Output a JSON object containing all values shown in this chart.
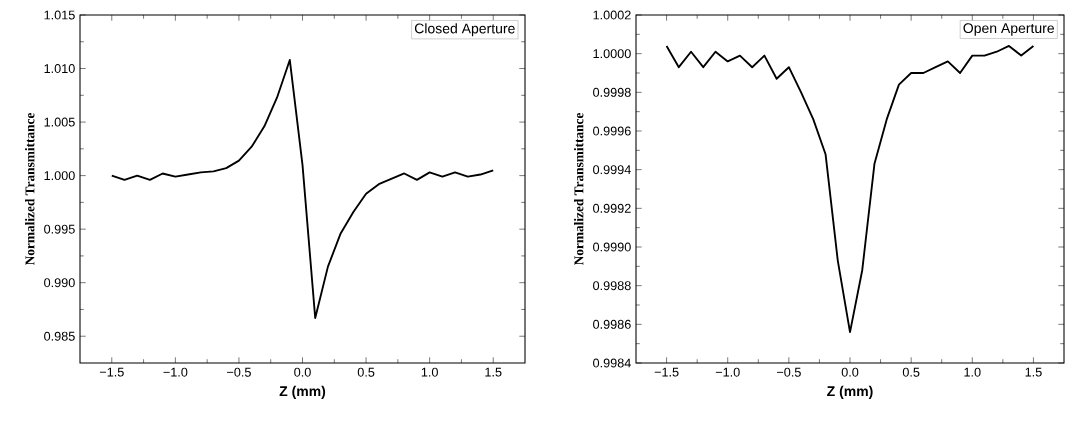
{
  "chart_data": [
    {
      "type": "line",
      "xlabel": "Z (mm)",
      "ylabel": "Normalized Transmittance",
      "annotations": [
        "Closed Aperture"
      ],
      "x": [
        -1.5,
        -1.4,
        -1.3,
        -1.2,
        -1.1,
        -1.0,
        -0.9,
        -0.8,
        -0.7,
        -0.6,
        -0.5,
        -0.4,
        -0.3,
        -0.2,
        -0.1,
        0.0,
        0.1,
        0.2,
        0.3,
        0.4,
        0.5,
        0.6,
        0.7,
        0.8,
        0.9,
        1.0,
        1.1,
        1.2,
        1.3,
        1.4,
        1.5
      ],
      "series": [
        {
          "color": "#000000",
          "values": [
            1.0,
            0.9996,
            1.0,
            0.9996,
            1.0002,
            0.9999,
            1.0001,
            1.0003,
            1.0004,
            1.0007,
            1.0014,
            1.0027,
            1.0046,
            1.0073,
            1.0108,
            1.001,
            0.9867,
            0.9915,
            0.9946,
            0.9966,
            0.9983,
            0.9992,
            0.9997,
            1.0002,
            0.9996,
            1.0003,
            0.9999,
            1.0003,
            0.9999,
            1.0001,
            1.0005
          ]
        }
      ],
      "xlim": [
        -1.75,
        1.75
      ],
      "ylim": [
        0.9825,
        1.015
      ],
      "xticks": [
        {
          "value": -1.5,
          "label": "−1.5"
        },
        {
          "value": -1.0,
          "label": "−1.0"
        },
        {
          "value": -0.5,
          "label": "−0.5"
        },
        {
          "value": 0.0,
          "label": "0.0"
        },
        {
          "value": 0.5,
          "label": "0.5"
        },
        {
          "value": 1.0,
          "label": "1.0"
        },
        {
          "value": 1.5,
          "label": "1.5"
        }
      ],
      "yticks": [
        {
          "value": 0.985,
          "label": "0.985"
        },
        {
          "value": 0.99,
          "label": "0.990"
        },
        {
          "value": 0.995,
          "label": "0.995"
        },
        {
          "value": 1.0,
          "label": "1.000"
        },
        {
          "value": 1.005,
          "label": "1.005"
        },
        {
          "value": 1.01,
          "label": "1.010"
        },
        {
          "value": 1.015,
          "label": "1.015"
        }
      ]
    },
    {
      "type": "line",
      "xlabel": "Z (mm)",
      "ylabel": "Normalized Transmittance",
      "annotations": [
        "Open Aperture"
      ],
      "x": [
        -1.5,
        -1.4,
        -1.3,
        -1.2,
        -1.1,
        -1.0,
        -0.9,
        -0.8,
        -0.7,
        -0.6,
        -0.5,
        -0.4,
        -0.3,
        -0.2,
        -0.1,
        0.0,
        0.1,
        0.2,
        0.3,
        0.4,
        0.5,
        0.6,
        0.7,
        0.8,
        0.9,
        1.0,
        1.1,
        1.2,
        1.3,
        1.4,
        1.5
      ],
      "series": [
        {
          "color": "#000000",
          "values": [
            1.00004,
            0.99993,
            1.00001,
            0.99993,
            1.00001,
            0.99996,
            0.99999,
            0.99993,
            0.99999,
            0.99987,
            0.99993,
            0.9998,
            0.99966,
            0.99948,
            0.99893,
            0.99856,
            0.99888,
            0.99943,
            0.99966,
            0.99984,
            0.9999,
            0.9999,
            0.99993,
            0.99996,
            0.9999,
            0.99999,
            0.99999,
            1.00001,
            1.00004,
            0.99999,
            1.00004
          ]
        }
      ],
      "xlim": [
        -1.75,
        1.75
      ],
      "ylim": [
        0.9984,
        1.0002
      ],
      "xticks": [
        {
          "value": -1.5,
          "label": "−1.5"
        },
        {
          "value": -1.0,
          "label": "−1.0"
        },
        {
          "value": -0.5,
          "label": "−0.5"
        },
        {
          "value": 0.0,
          "label": "0.0"
        },
        {
          "value": 0.5,
          "label": "0.5"
        },
        {
          "value": 1.0,
          "label": "1.0"
        },
        {
          "value": 1.5,
          "label": "1.5"
        }
      ],
      "yticks": [
        {
          "value": 0.9984,
          "label": "0.9984"
        },
        {
          "value": 0.9986,
          "label": "0.9986"
        },
        {
          "value": 0.9988,
          "label": "0.9988"
        },
        {
          "value": 0.999,
          "label": "0.9990"
        },
        {
          "value": 0.9992,
          "label": "0.9992"
        },
        {
          "value": 0.9994,
          "label": "0.9994"
        },
        {
          "value": 0.9996,
          "label": "0.9996"
        },
        {
          "value": 0.9998,
          "label": "0.9998"
        },
        {
          "value": 1.0,
          "label": "1.0000"
        },
        {
          "value": 1.0002,
          "label": "1.0002"
        }
      ]
    }
  ]
}
